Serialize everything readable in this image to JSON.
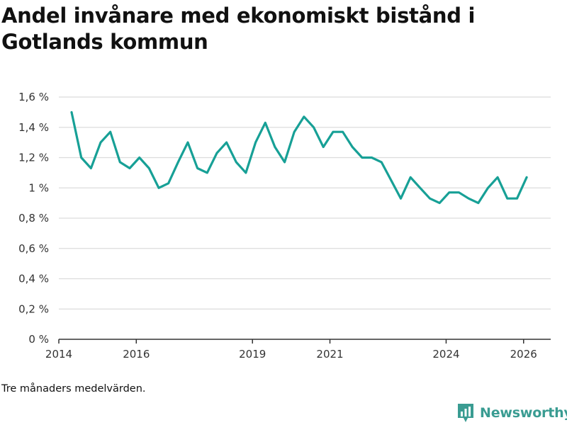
{
  "title": "Andel invånare med ekonomiskt bistånd i Gotlands kommun",
  "note": "Tre månaders medelvärden.",
  "brand": {
    "name": "Newsworthy",
    "icon": "bar-chart-flag-icon",
    "color": "#3a9c92"
  },
  "colors": {
    "line": "#17a096",
    "grid": "#dcdcdc",
    "axis": "#333333"
  },
  "chart_data": {
    "type": "line",
    "title": "Andel invånare med ekonomiskt bistånd i Gotlands kommun",
    "xlabel": "",
    "ylabel": "",
    "xlim": [
      2014.0,
      2026.7
    ],
    "ylim": [
      0,
      1.6
    ],
    "y_ticks": [
      0,
      0.2,
      0.4,
      0.6,
      0.8,
      1.0,
      1.2,
      1.4,
      1.6
    ],
    "y_tick_labels": [
      "0 %",
      "0,2 %",
      "0,4 %",
      "0,6 %",
      "0,8 %",
      "1 %",
      "1,2 %",
      "1,4 %",
      "1,6 %"
    ],
    "x_ticks": [
      2014,
      2016,
      2019,
      2021,
      2024,
      2026
    ],
    "x_tick_labels": [
      "2014",
      "2016",
      "2019",
      "2021",
      "2024",
      "2026"
    ],
    "grid": true,
    "series": [
      {
        "name": "Andel invånare med ekonomiskt bistånd",
        "x": [
          2014.33,
          2014.58,
          2014.83,
          2015.08,
          2015.33,
          2015.58,
          2015.83,
          2016.08,
          2016.33,
          2016.58,
          2016.83,
          2017.08,
          2017.33,
          2017.58,
          2017.83,
          2018.08,
          2018.33,
          2018.58,
          2018.83,
          2019.08,
          2019.33,
          2019.58,
          2019.83,
          2020.08,
          2020.33,
          2020.58,
          2020.83,
          2021.08,
          2021.33,
          2021.58,
          2021.83,
          2022.08,
          2022.33,
          2022.58,
          2022.83,
          2023.08,
          2023.33,
          2023.58,
          2023.83,
          2024.08,
          2024.33,
          2024.58,
          2024.83,
          2025.08,
          2025.33,
          2025.58,
          2025.83,
          2026.08
        ],
        "values": [
          1.5,
          1.2,
          1.13,
          1.3,
          1.37,
          1.17,
          1.13,
          1.2,
          1.13,
          1.0,
          1.03,
          1.17,
          1.3,
          1.13,
          1.1,
          1.23,
          1.3,
          1.17,
          1.1,
          1.3,
          1.43,
          1.27,
          1.17,
          1.37,
          1.47,
          1.4,
          1.27,
          1.37,
          1.37,
          1.27,
          1.2,
          1.2,
          1.17,
          1.05,
          0.93,
          1.07,
          1.0,
          0.93,
          0.9,
          0.97,
          0.97,
          0.93,
          0.9,
          1.0,
          1.07,
          0.93,
          0.93,
          1.07
        ]
      }
    ]
  }
}
